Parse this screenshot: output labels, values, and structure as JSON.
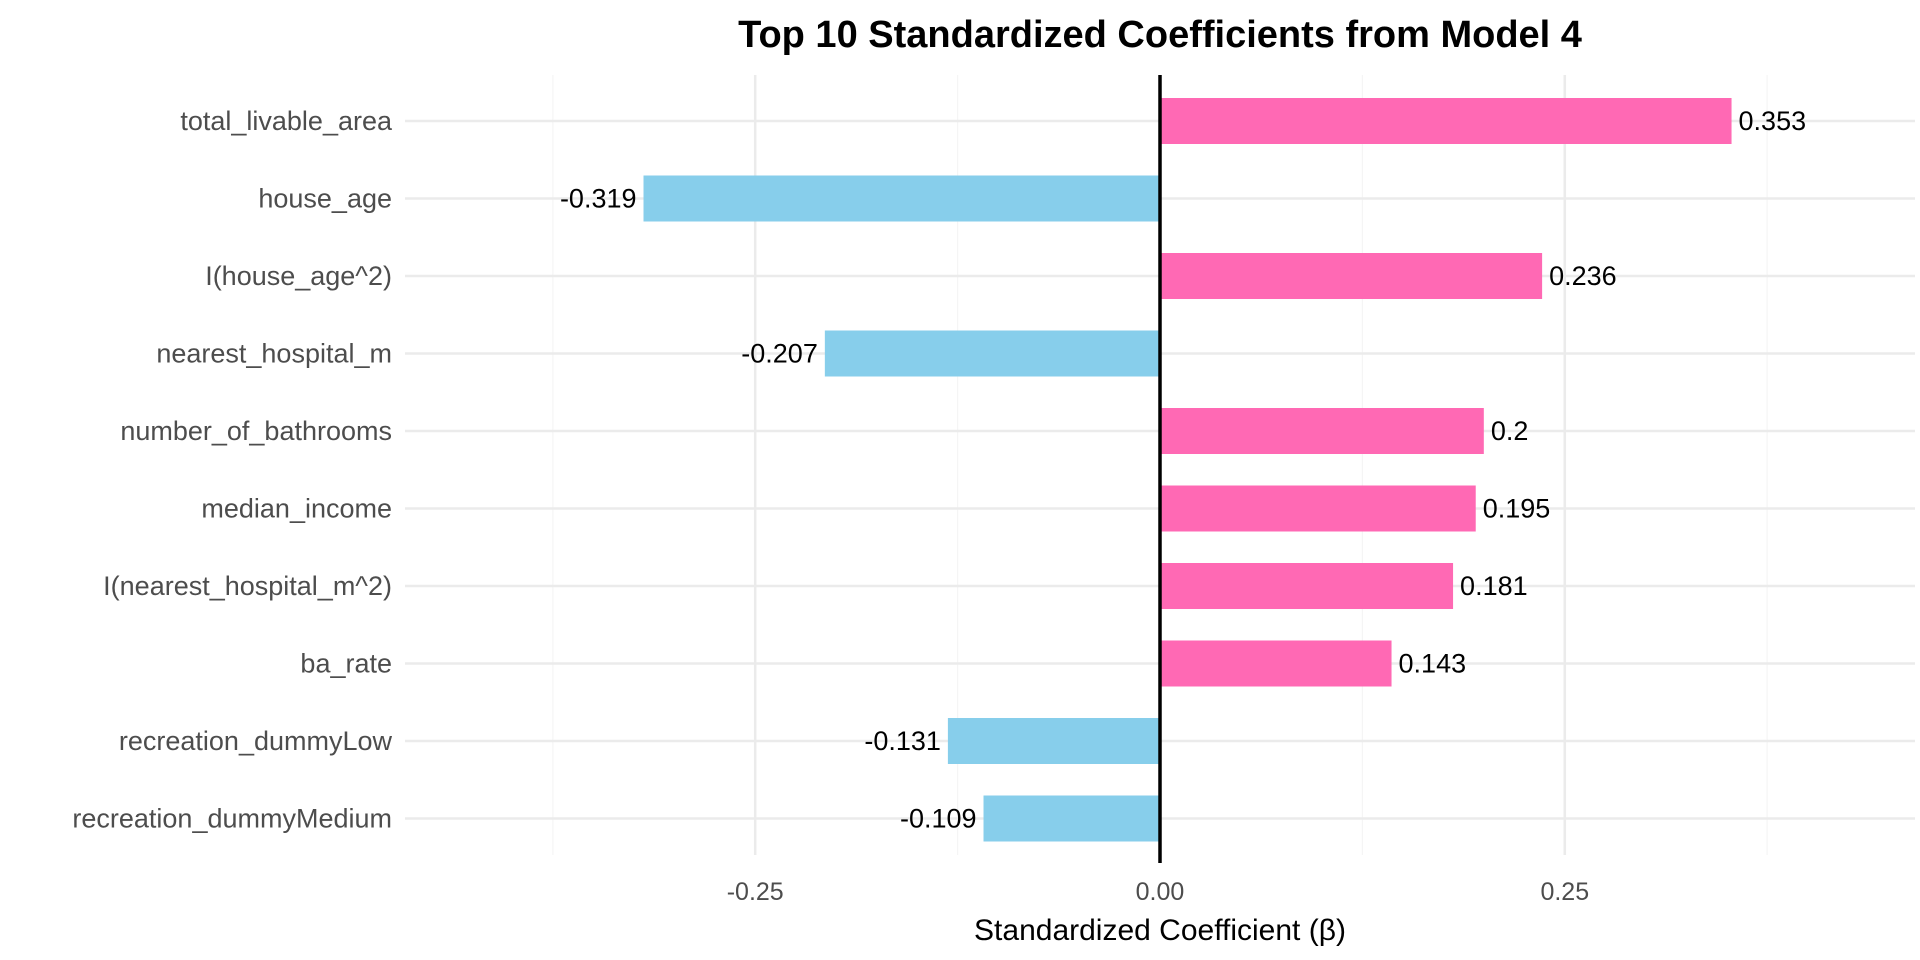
{
  "chart_data": {
    "type": "bar",
    "orientation": "horizontal",
    "title": "Top 10 Standardized Coefficients from Model 4",
    "xlabel": "Standardized Coefficient (β)",
    "ylabel": "",
    "categories": [
      "total_livable_area",
      "house_age",
      "I(house_age^2)",
      "nearest_hospital_m",
      "number_of_bathrooms",
      "median_income",
      "I(nearest_hospital_m^2)",
      "ba_rate",
      "recreation_dummyLow",
      "recreation_dummyMedium"
    ],
    "values": [
      0.353,
      -0.319,
      0.236,
      -0.207,
      0.2,
      0.195,
      0.181,
      0.143,
      -0.131,
      -0.109
    ],
    "value_labels": [
      "0.353",
      "-0.319",
      "0.236",
      "-0.207",
      "0.2",
      "0.195",
      "0.181",
      "0.143",
      "-0.131",
      "-0.109"
    ],
    "xticks": [
      -0.25,
      0,
      0.25
    ],
    "xtick_labels": [
      "-0.25",
      "0.00",
      "0.25"
    ],
    "xlim": [
      -0.4746,
      0.4746
    ],
    "grid": true,
    "legend": "none",
    "colors": {
      "positive": "#ff69b4",
      "negative": "#87ceeb",
      "zero_line": "#000000"
    }
  }
}
